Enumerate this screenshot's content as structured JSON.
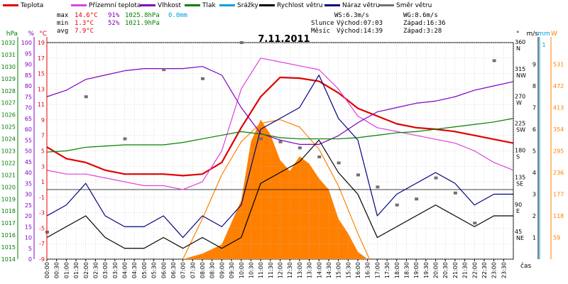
{
  "legend": [
    {
      "label": "Teplota",
      "color": "#e00000"
    },
    {
      "label": "Přízemní teplota",
      "color": "#e040e0"
    },
    {
      "label": "Vlhkost",
      "color": "#8000c0"
    },
    {
      "label": "Tlak",
      "color": "#008000"
    },
    {
      "label": "Srážky",
      "color": "#00a0e0"
    },
    {
      "label": "Rychlost větru",
      "color": "#000000"
    },
    {
      "label": "Náraz větru",
      "color": "#000080"
    },
    {
      "label": "Směr větru",
      "color": "#707070"
    }
  ],
  "stats": {
    "max": {
      "label": "max",
      "temp": "14.6°C",
      "hum": "91%",
      "press": "1025.8hPa",
      "rain": "0.0mm"
    },
    "min": {
      "label": "min",
      "temp": "1.3°C",
      "hum": "52%",
      "press": "1021.9hPa"
    },
    "avg": {
      "label": "avg",
      "temp": "7.9°C"
    }
  },
  "wind_stats": {
    "ws": "WS:6.3m/s",
    "wg": "WG:8.6m/s"
  },
  "astro": {
    "sun": {
      "label": "Slunce",
      "rise": "Východ:07:03",
      "set": "Západ:16:36"
    },
    "moon": {
      "label": "Měsíc",
      "rise": "Východ:14:39",
      "set": "Západ:3:28"
    }
  },
  "chart_data": {
    "type": "line",
    "title": "7.11.2011",
    "xlabel": "čas",
    "x_ticks": [
      "00:00",
      "00:30",
      "01:00",
      "01:30",
      "02:00",
      "02:30",
      "03:00",
      "03:30",
      "04:00",
      "04:30",
      "05:00",
      "05:30",
      "06:00",
      "06:30",
      "07:00",
      "07:30",
      "08:00",
      "08:30",
      "09:00",
      "09:30",
      "10:00",
      "10:30",
      "11:00",
      "11:30",
      "12:00",
      "12:30",
      "13:00",
      "13:30",
      "14:00",
      "14:30",
      "15:00",
      "15:30",
      "16:00",
      "16:30",
      "17:00",
      "17:30",
      "18:00",
      "18:30",
      "19:00",
      "19:30",
      "20:00",
      "20:30",
      "21:00",
      "21:30",
      "22:00",
      "22:30",
      "23:00",
      "23:30"
    ],
    "axes": {
      "pressure": {
        "unit": "hPa",
        "ticks": [
          "1032",
          "1031",
          "1030",
          "1029",
          "1028",
          "1027",
          "1026",
          "1025",
          "1024",
          "1023",
          "1022",
          "1021",
          "1020",
          "1019",
          "1018",
          "1017",
          "1016",
          "1015",
          "1014"
        ],
        "color": "#008000"
      },
      "humidity": {
        "unit": "%",
        "ticks": [
          "100",
          "95",
          "90",
          "85",
          "80",
          "75",
          "70",
          "65",
          "60",
          "55",
          "50",
          "45",
          "40",
          "35",
          "30",
          "25",
          "20",
          "15",
          "10",
          "5",
          "0"
        ],
        "color": "#8000c0"
      },
      "temperature": {
        "unit": "°C",
        "ticks": [
          "19",
          "17",
          "15",
          "13",
          "11",
          "9",
          "7",
          "5",
          "3",
          "1",
          "-1",
          "-3",
          "-5",
          "-7",
          "-9"
        ],
        "color": "#e00000"
      },
      "direction": {
        "unit": "°",
        "ticks": [
          "360",
          "315",
          "270",
          "225",
          "180",
          "135",
          "90",
          "45"
        ],
        "names": [
          "N",
          "NW",
          "W",
          "SW",
          "S",
          "SE",
          "E",
          "NE"
        ]
      },
      "wind": {
        "unit": "m/s",
        "ticks": [
          "9",
          "8",
          "7",
          "6",
          "5",
          "4",
          "3",
          "2",
          "1"
        ]
      },
      "rain": {
        "unit": "mm",
        "ticks": [
          "1"
        ]
      },
      "solar": {
        "unit": "W",
        "ticks": [
          "531",
          "472",
          "413",
          "354",
          "295",
          "236",
          "177",
          "118",
          "59"
        ],
        "color": "#ff8000"
      }
    },
    "series": [
      {
        "name": "Teplota",
        "unit": "°C",
        "color": "#e00000",
        "x": [
          0,
          1,
          2,
          3,
          4,
          5,
          6,
          7,
          8,
          9,
          10,
          11,
          12,
          13,
          14,
          15,
          16,
          17,
          18,
          19,
          20,
          21,
          22,
          23,
          24
        ],
        "y": [
          5.5,
          4.0,
          3.5,
          2.5,
          2.0,
          2.0,
          2.0,
          1.8,
          2.0,
          3.5,
          8.0,
          12.0,
          14.5,
          14.4,
          14.0,
          12.5,
          10.5,
          9.5,
          8.5,
          8.0,
          7.8,
          7.5,
          7.0,
          6.5,
          6.0
        ]
      },
      {
        "name": "Přízemní teplota",
        "unit": "°C",
        "color": "#e040e0",
        "x": [
          0,
          1,
          2,
          3,
          4,
          5,
          6,
          7,
          8,
          9,
          10,
          11,
          12,
          13,
          14,
          15,
          16,
          17,
          18,
          19,
          20,
          21,
          22,
          23,
          24
        ],
        "y": [
          2.5,
          2.0,
          2.0,
          1.5,
          1.0,
          0.5,
          0.5,
          0.0,
          1.0,
          5.0,
          13.0,
          17.0,
          16.5,
          16.0,
          15.5,
          13.0,
          9.5,
          8.0,
          7.5,
          7.0,
          6.5,
          6.0,
          5.0,
          3.5,
          2.5
        ]
      },
      {
        "name": "Vlhkost",
        "unit": "%",
        "color": "#8000c0",
        "x": [
          0,
          1,
          2,
          3,
          4,
          5,
          6,
          7,
          8,
          9,
          10,
          11,
          12,
          13,
          14,
          15,
          16,
          17,
          18,
          19,
          20,
          21,
          22,
          23,
          24
        ],
        "y": [
          75,
          78,
          83,
          85,
          87,
          88,
          88,
          88,
          89,
          85,
          70,
          58,
          55,
          53,
          53,
          57,
          63,
          68,
          70,
          72,
          73,
          75,
          78,
          80,
          82
        ]
      },
      {
        "name": "Tlak",
        "unit": "hPa",
        "color": "#008000",
        "x": [
          0,
          1,
          2,
          3,
          4,
          5,
          6,
          7,
          8,
          9,
          10,
          11,
          12,
          13,
          14,
          15,
          16,
          17,
          18,
          19,
          20,
          21,
          22,
          23,
          24
        ],
        "y": [
          1022.9,
          1023.0,
          1023.3,
          1023.4,
          1023.5,
          1023.5,
          1023.5,
          1023.7,
          1024.0,
          1024.3,
          1024.6,
          1024.4,
          1024.1,
          1024.0,
          1024.0,
          1024.0,
          1024.1,
          1024.3,
          1024.5,
          1024.6,
          1024.8,
          1025.0,
          1025.2,
          1025.4,
          1025.7
        ]
      },
      {
        "name": "Rychlost větru",
        "unit": "m/s",
        "color": "#000000",
        "x": [
          0,
          1,
          2,
          3,
          4,
          5,
          6,
          7,
          8,
          9,
          10,
          11,
          12,
          13,
          14,
          15,
          16,
          17,
          18,
          19,
          20,
          21,
          22,
          23,
          24
        ],
        "y": [
          1.0,
          1.5,
          2.0,
          1.0,
          0.5,
          0.5,
          1.0,
          0.5,
          1.0,
          0.5,
          1.0,
          3.5,
          4.0,
          4.5,
          5.5,
          4.0,
          3.0,
          1.0,
          1.5,
          2.0,
          2.5,
          2.0,
          1.5,
          2.0,
          2.0
        ]
      },
      {
        "name": "Náraz větru",
        "unit": "m/s",
        "color": "#000080",
        "x": [
          0,
          1,
          2,
          3,
          4,
          5,
          6,
          7,
          8,
          9,
          10,
          11,
          12,
          13,
          14,
          15,
          16,
          17,
          18,
          19,
          20,
          21,
          22,
          23,
          24
        ],
        "y": [
          2.0,
          2.5,
          3.5,
          2.0,
          1.5,
          1.5,
          2.0,
          1.0,
          2.0,
          1.5,
          2.5,
          6.0,
          6.5,
          7.0,
          8.5,
          6.5,
          5.5,
          2.0,
          3.0,
          3.5,
          4.0,
          3.5,
          2.5,
          3.0,
          3.0
        ]
      },
      {
        "name": "Směr větru",
        "unit": "°",
        "color": "#707070",
        "x": [
          0,
          2,
          4,
          6,
          8,
          10,
          11,
          12,
          13,
          14,
          15,
          16,
          17,
          18,
          19,
          20,
          21,
          22,
          23
        ],
        "y": [
          45,
          270,
          200,
          315,
          300,
          360,
          200,
          195,
          185,
          170,
          160,
          140,
          120,
          90,
          100,
          135,
          110,
          60,
          330
        ]
      }
    ],
    "solar": {
      "color": "#ff8000",
      "x": [
        7,
        8,
        9,
        10,
        10.5,
        11,
        11.5,
        12,
        12.5,
        13,
        13.5,
        14,
        14.5,
        15,
        15.5,
        16,
        16.5
      ],
      "y": [
        0,
        15,
        40,
        160,
        320,
        380,
        340,
        270,
        240,
        280,
        260,
        220,
        190,
        110,
        70,
        20,
        0
      ]
    },
    "solar_clear_sky": {
      "color": "#ff8000",
      "x": [
        7,
        8,
        9,
        10,
        11,
        12,
        13,
        14,
        15,
        16,
        16.6
      ],
      "y": [
        0,
        110,
        230,
        320,
        370,
        380,
        360,
        300,
        200,
        70,
        0
      ]
    }
  }
}
